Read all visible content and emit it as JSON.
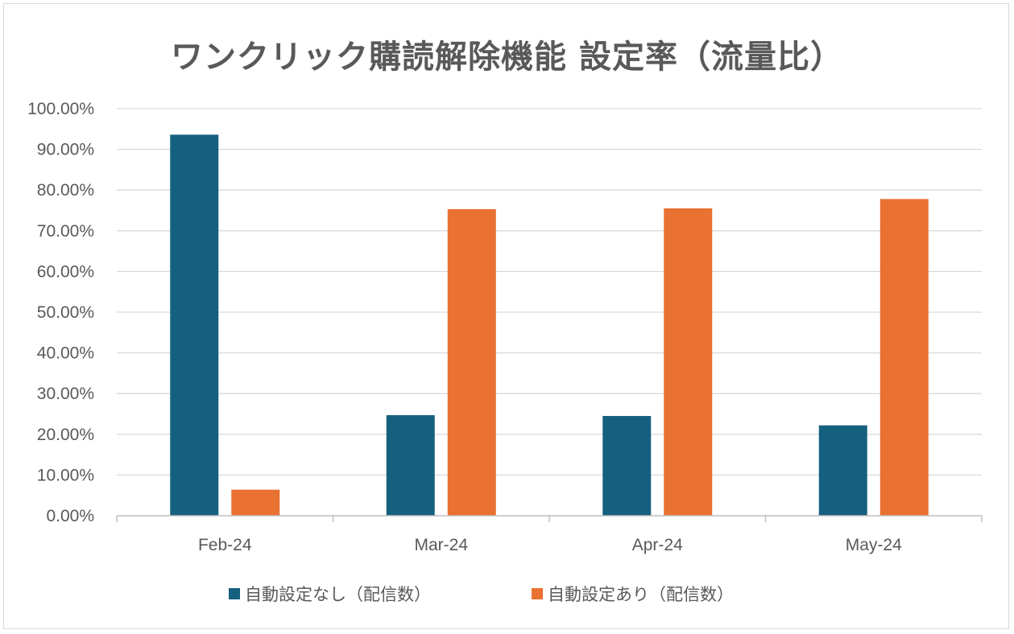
{
  "chart_data": {
    "type": "bar",
    "title": "ワンクリック購読解除機能 設定率（流量比）",
    "categories": [
      "Feb-24",
      "Mar-24",
      "Apr-24",
      "May-24"
    ],
    "series": [
      {
        "name": "自動設定なし（配信数）",
        "color": "#16607f",
        "values": [
          93.6,
          24.7,
          24.5,
          22.2
        ]
      },
      {
        "name": "自動設定あり（配信数）",
        "color": "#e97132",
        "values": [
          6.4,
          75.3,
          75.5,
          77.8
        ]
      }
    ],
    "ylim": [
      0,
      100
    ],
    "ytick_step": 10,
    "ytick_labels": [
      "0.00%",
      "10.00%",
      "20.00%",
      "30.00%",
      "40.00%",
      "50.00%",
      "60.00%",
      "70.00%",
      "80.00%",
      "90.00%",
      "100.00%"
    ],
    "grid": true,
    "legend": "bottom",
    "xlabel": "",
    "ylabel": ""
  },
  "colors": {
    "grid": "#d9d9d9",
    "axis": "#bfbfbf",
    "text": "#595959"
  }
}
